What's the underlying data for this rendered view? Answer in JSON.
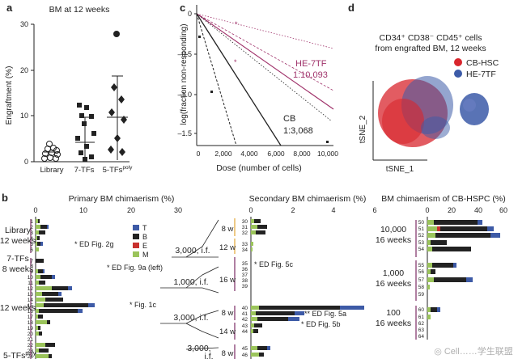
{
  "panels": {
    "a": {
      "letter": "a",
      "title": "BM at 12 weeks",
      "ylabel": "Engraftment (%)",
      "yticks": [
        "0",
        "10",
        "20",
        "30"
      ],
      "groups": [
        {
          "label": "Library"
        },
        {
          "label": "7-TFs"
        },
        {
          "label_main": "5-TFs",
          "label_sup": "poly"
        }
      ]
    },
    "c": {
      "letter": "c",
      "ylabel": "log(fraction non-responding)",
      "yticks": [
        "0",
        "–0.5",
        "–1.0",
        "–1.5"
      ],
      "xticks": [
        "0",
        "2,000",
        "4,000",
        "6,000",
        "8,000",
        "10,000"
      ],
      "xlabel": "Dose (number of cells)",
      "hetf_label": "HE-7TF",
      "hetf_freq": "1:10,093",
      "cb_label": "CB",
      "cb_freq": "1:3,068"
    },
    "d": {
      "letter": "d",
      "title_line1": "CD34⁺ CD38⁻ CD45⁺ cells",
      "title_line2": "from engrafted BM, 12 weeks",
      "legend": [
        {
          "label": "CB-HSC",
          "color": "#d8262d"
        },
        {
          "label": "HE-7TF",
          "color": "#3c5ba8"
        }
      ],
      "xlabel": "tSNE_1",
      "ylabel": "tSNE_2"
    },
    "b": {
      "letter": "b",
      "primary": {
        "title": "Primary BM chimaerism (%)",
        "ticks": [
          "0",
          "10",
          "20",
          "30"
        ],
        "legend": [
          {
            "label": "T",
            "color": "#3d5aa6"
          },
          {
            "label": "B",
            "color": "#222222"
          },
          {
            "label": "E",
            "color": "#c8312e"
          },
          {
            "label": "M",
            "color": "#9bc45b"
          }
        ],
        "groups": [
          {
            "line1": "Library",
            "line2": "12 weeks"
          },
          {
            "line1": "7-TFs",
            "line2": "8 weeks"
          },
          {
            "line1": "12 weeks",
            "line2": ""
          },
          {
            "line1": "5-TFs",
            "line2": "poly"
          }
        ],
        "rows": [
          "1",
          "2",
          "3",
          "4",
          "5",
          "6",
          "7",
          "8",
          "9",
          "10",
          "11",
          "12",
          "13",
          "14",
          "15",
          "16",
          "17",
          "18",
          "19",
          "20",
          "21",
          "22",
          "23",
          "24",
          "25"
        ],
        "annotations": [
          "* ED Fig. 2g",
          "* ED Fig. 9a (left)",
          "* Fig. 1c"
        ]
      },
      "transplant": [
        "3,000, i.f.",
        "1,000, i.f.",
        "3,000, i.f.",
        "3,000,",
        "i.f."
      ],
      "secondary": {
        "title": "Secondary BM chimaerism (%)",
        "ticks": [
          "0",
          "2",
          "4",
          "6"
        ],
        "weeks": [
          "8 w",
          "12 w",
          "16 w",
          "8 w",
          "14 w",
          "8 w"
        ],
        "rows": [
          "30",
          "31",
          "32",
          "33",
          "34",
          "35",
          "36",
          "37",
          "38",
          "39",
          "40",
          "41",
          "42",
          "43",
          "44",
          "45",
          "46"
        ],
        "annotations": [
          "* ED Fig. 5c",
          "** ED Fig. 5a",
          "* ED Fig. 5b"
        ]
      },
      "hspc": {
        "title": "BM chimaerism of CB-HSPC (%)",
        "ticks": [
          "0",
          "20",
          "40",
          "60"
        ],
        "groups": [
          {
            "line1": "10,000",
            "line2": "16 weeks"
          },
          {
            "line1": "1,000",
            "line2": "16 weeks"
          },
          {
            "line1": "100",
            "line2": "16 weeks"
          }
        ],
        "rows": [
          "50",
          "51",
          "52",
          "53",
          "54",
          "55",
          "56",
          "57",
          "58",
          "59",
          "60",
          "61",
          "62",
          "63",
          "64"
        ]
      }
    }
  },
  "watermark": "◎ Cell……学生联盟"
}
